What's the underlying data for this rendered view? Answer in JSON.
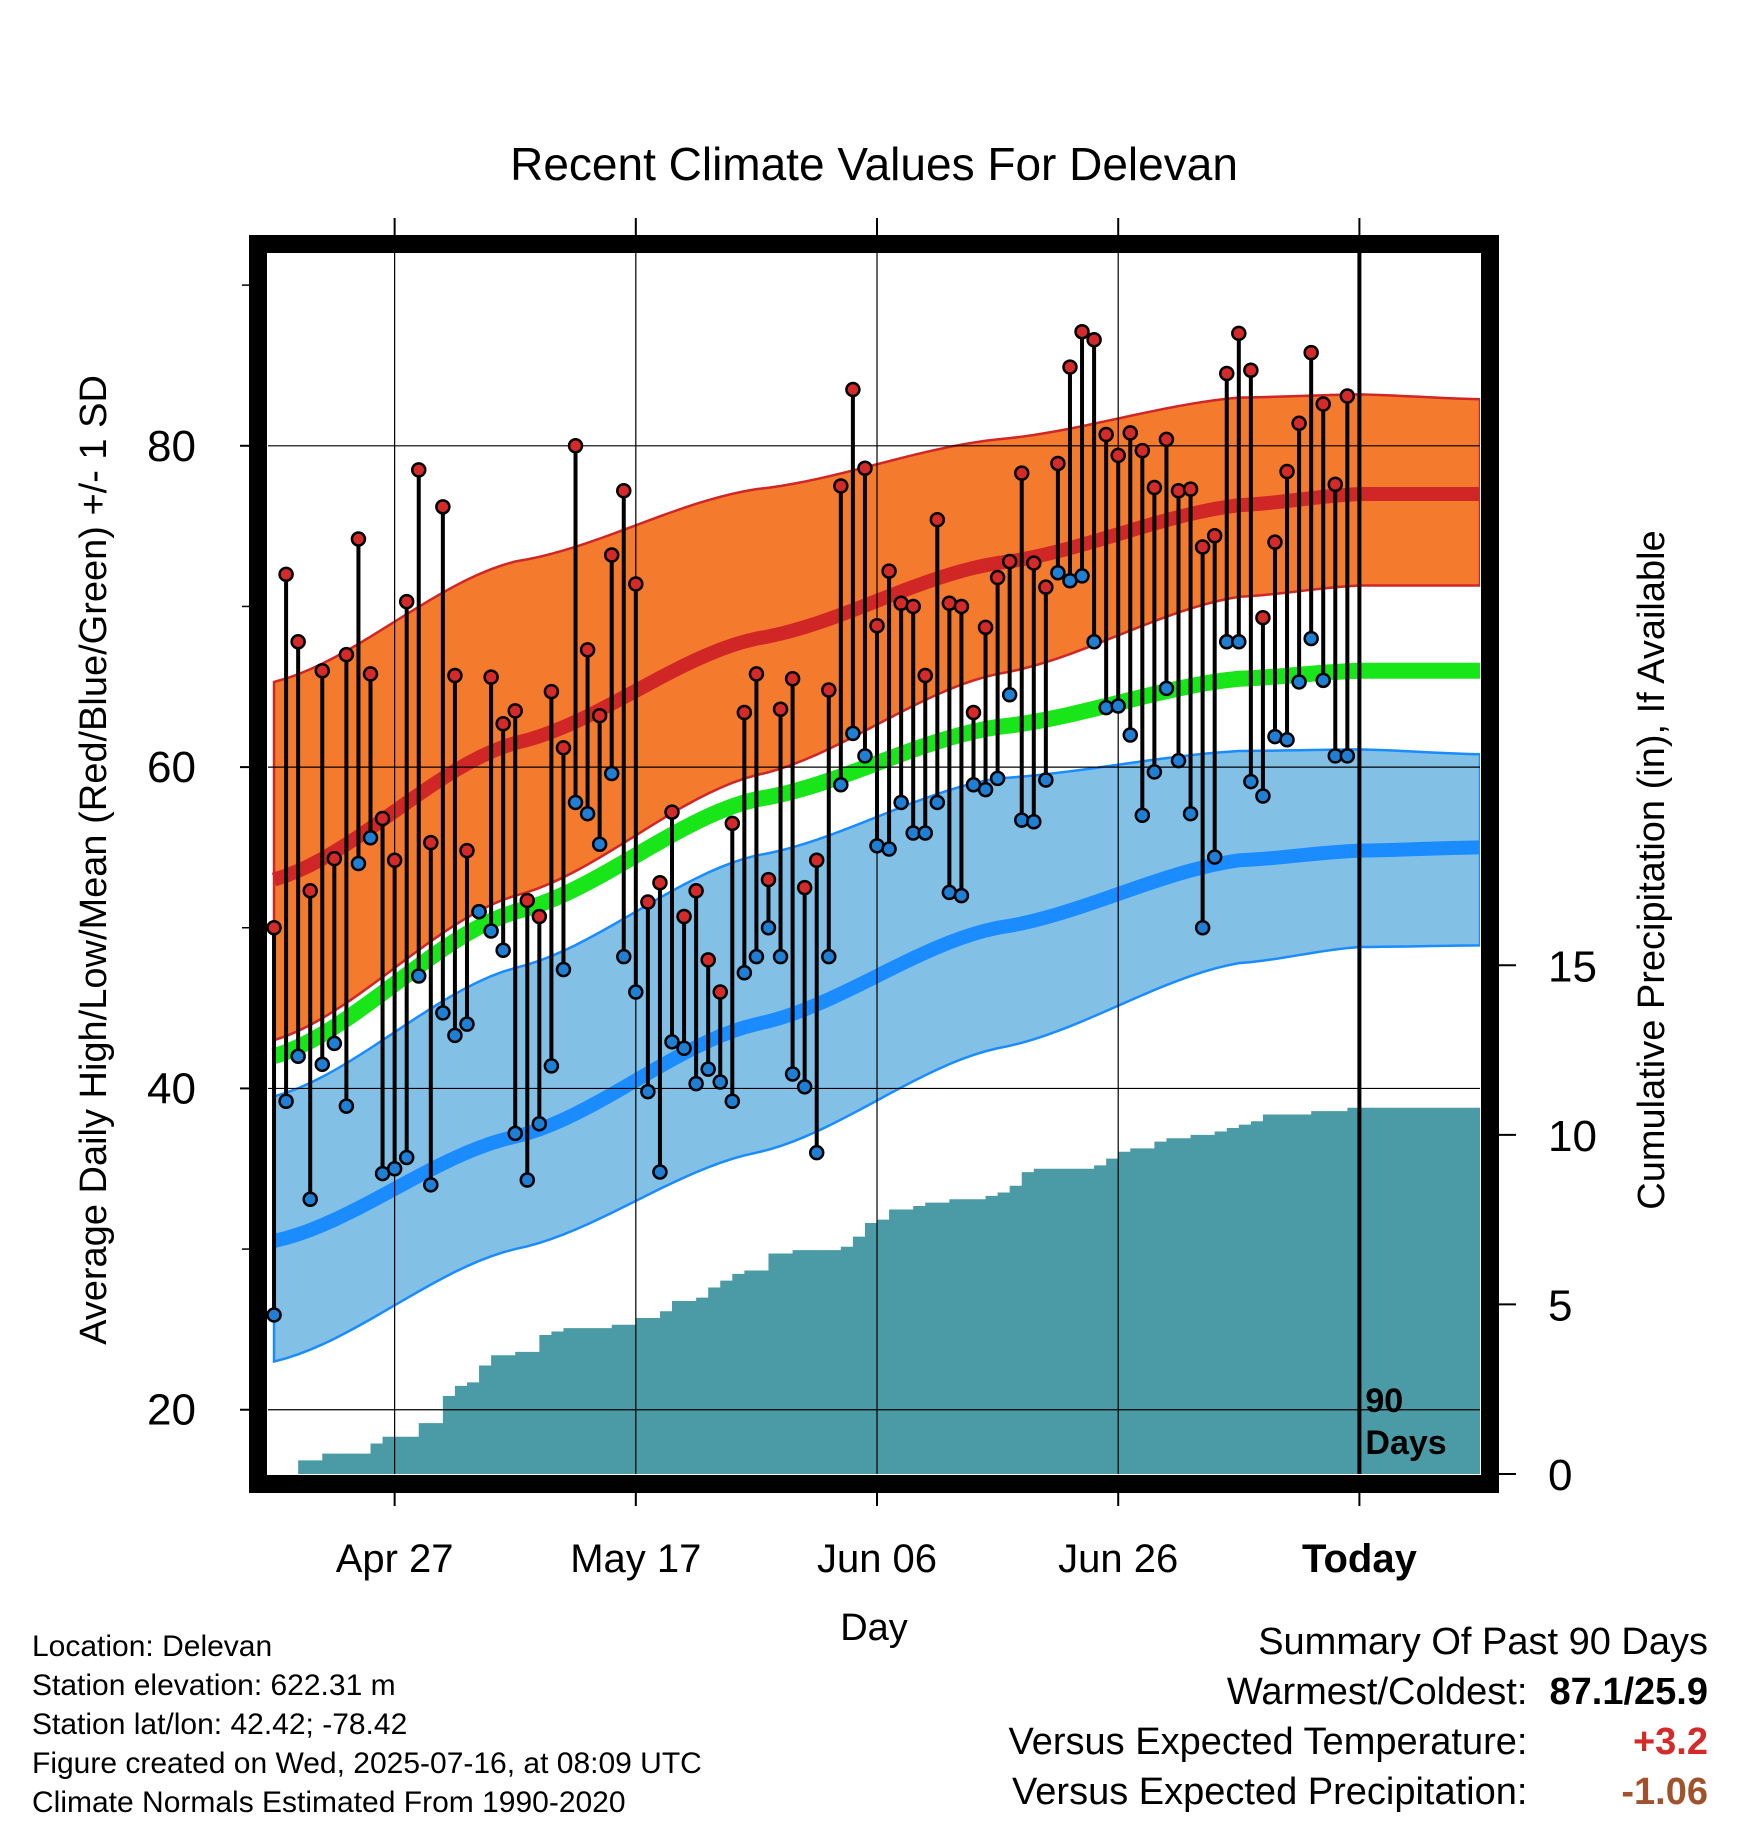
{
  "chart_data": {
    "type": "line",
    "title": "Recent Climate Values For Delevan",
    "xlabel": "Day",
    "ylabel": "Average Daily High/Low/Mean (Red/Blue/Green) +/- 1 SD",
    "y2label": "Cumulative Precipitation (in), If Available",
    "x_ticklabels": [
      "Apr 27",
      "May 17",
      "Jun 06",
      "Jun 26",
      "Today"
    ],
    "x_tick_days": [
      10,
      30,
      50,
      70,
      90
    ],
    "y_ticks": [
      20,
      40,
      60,
      80
    ],
    "ylim": [
      16,
      92
    ],
    "y2_ticks": [
      0,
      5,
      10,
      15
    ],
    "y2lim": [
      0,
      36
    ],
    "xlim": [
      -0.5,
      100
    ],
    "today_marker_label": [
      "90",
      "Days"
    ],
    "normals": {
      "days": [
        0,
        20,
        40,
        60,
        80,
        90,
        100
      ],
      "high_mean": [
        53,
        61.5,
        68,
        72.7,
        76.3,
        77,
        77
      ],
      "high_upper": [
        65.3,
        72.8,
        77.3,
        80.4,
        83,
        83.2,
        82.9
      ],
      "high_lower": [
        43,
        52,
        59.5,
        65.8,
        70.6,
        71.3,
        71.3
      ],
      "mean": [
        42,
        51,
        58,
        62.5,
        65.5,
        66,
        66
      ],
      "low_mean": [
        30.5,
        37,
        44,
        50,
        54.2,
        54.8,
        55
      ],
      "low_upper": [
        39.5,
        47.5,
        54.5,
        59.3,
        61,
        61.1,
        60.8
      ],
      "low_lower": [
        23,
        30,
        36,
        42.5,
        47.8,
        48.8,
        48.9
      ]
    },
    "series": [
      {
        "name": "High",
        "color": "#d42a2a",
        "values": [
          50,
          72,
          67.8,
          52.3,
          66,
          54.3,
          67,
          74.2,
          65.8,
          56.8,
          54.2,
          70.3,
          78.5,
          55.3,
          76.2,
          65.7,
          54.8,
          51,
          65.6,
          62.7,
          63.5,
          51.7,
          50.7,
          64.7,
          61.2,
          80,
          67.3,
          63.2,
          73.2,
          77.2,
          71.4,
          51.6,
          52.8,
          57.2,
          50.7,
          52.3,
          48,
          46,
          56.5,
          63.4,
          65.8,
          53,
          63.6,
          65.5,
          52.5,
          54.2,
          64.8,
          77.5,
          83.5,
          78.6,
          68.8,
          72.2,
          70.2,
          70,
          65.7,
          75.4,
          70.2,
          70,
          63.4,
          68.7,
          71.8,
          72.8,
          78.3,
          72.7,
          71.2,
          78.9,
          84.9,
          87.1,
          86.6,
          80.7,
          79.4,
          80.8,
          79.7,
          77.4,
          80.4,
          77.2,
          77.3,
          73.7,
          74.4,
          84.5,
          87,
          84.7,
          69.3,
          74,
          78.4,
          81.4,
          85.8,
          82.6,
          77.6,
          83.1
        ]
      },
      {
        "name": "Low",
        "color": "#1f7fd4",
        "values": [
          25.9,
          39.2,
          42,
          33.1,
          41.5,
          42.8,
          38.9,
          54,
          55.6,
          34.7,
          35,
          35.7,
          47,
          34,
          44.7,
          43.3,
          44,
          51,
          49.8,
          48.6,
          37.2,
          34.3,
          37.8,
          41.4,
          47.4,
          57.8,
          57.1,
          55.2,
          59.6,
          48.2,
          46,
          39.8,
          34.8,
          42.9,
          42.5,
          40.3,
          41.2,
          40.4,
          39.2,
          47.2,
          48.2,
          50,
          48.2,
          40.9,
          40.1,
          36,
          48.2,
          58.9,
          62.1,
          60.7,
          55.1,
          54.9,
          57.8,
          55.9,
          55.9,
          57.8,
          52.2,
          52,
          58.9,
          58.6,
          59.3,
          64.5,
          56.7,
          56.6,
          59.2,
          72.1,
          71.6,
          71.9,
          67.8,
          63.7,
          63.8,
          62,
          57,
          59.7,
          64.9,
          60.4,
          57.1,
          50,
          54.4,
          67.8,
          67.8,
          59.1,
          58.2,
          61.9,
          61.7,
          65.3,
          68,
          65.4,
          60.7,
          60.7
        ]
      }
    ],
    "precip_cumulative": {
      "days": [
        0,
        1,
        2,
        3,
        4,
        5,
        6,
        7,
        8,
        9,
        10,
        11,
        12,
        13,
        14,
        15,
        16,
        17,
        18,
        19,
        20,
        21,
        22,
        23,
        24,
        25,
        26,
        27,
        28,
        29,
        30,
        31,
        32,
        33,
        34,
        35,
        36,
        37,
        38,
        39,
        40,
        41,
        42,
        43,
        44,
        45,
        46,
        47,
        48,
        49,
        50,
        51,
        52,
        53,
        54,
        55,
        56,
        57,
        58,
        59,
        60,
        61,
        62,
        63,
        64,
        65,
        66,
        67,
        68,
        69,
        70,
        71,
        72,
        73,
        74,
        75,
        76,
        77,
        78,
        79,
        80,
        81,
        82,
        83,
        84,
        85,
        86,
        87,
        88,
        89,
        90,
        100
      ],
      "values": [
        0,
        0,
        0.4,
        0.4,
        0.6,
        0.6,
        0.6,
        0.6,
        0.9,
        1.1,
        1.1,
        1.1,
        1.5,
        1.5,
        2.3,
        2.6,
        2.7,
        3.2,
        3.5,
        3.5,
        3.6,
        3.6,
        4.1,
        4.2,
        4.3,
        4.3,
        4.3,
        4.3,
        4.4,
        4.4,
        4.6,
        4.6,
        4.8,
        5.1,
        5.1,
        5.2,
        5.5,
        5.7,
        5.9,
        6.0,
        6.0,
        6.5,
        6.5,
        6.6,
        6.6,
        6.6,
        6.6,
        6.7,
        7.0,
        7.4,
        7.5,
        7.8,
        7.8,
        7.9,
        8.0,
        8.0,
        8.1,
        8.1,
        8.1,
        8.2,
        8.3,
        8.5,
        8.9,
        9.0,
        9.0,
        9.0,
        9.0,
        9.0,
        9.1,
        9.3,
        9.5,
        9.6,
        9.6,
        9.8,
        9.9,
        9.9,
        10.0,
        10.0,
        10.1,
        10.2,
        10.3,
        10.4,
        10.6,
        10.6,
        10.6,
        10.6,
        10.7,
        10.7,
        10.7,
        10.8,
        10.8,
        10.8
      ]
    }
  },
  "colors": {
    "high_band": "#f47a2e",
    "high_line": "#d02626",
    "low_band": "#82c0e6",
    "low_line": "#1a8cff",
    "mean_line": "#19e619",
    "precip": "#4a9ba5"
  },
  "info": {
    "location": "Location: Delevan",
    "elevation": "Station elevation: 622.31 m",
    "latlon": "Station lat/lon: 42.42; -78.42",
    "created": "Figure created on Wed, 2025-07-16, at 08:09 UTC",
    "normals": "Climate Normals Estimated From 1990-2020"
  },
  "summary": {
    "heading": "Summary Of Past 90 Days",
    "warm_label": "Warmest/Coldest:",
    "warm_value": "87.1/25.9",
    "temp_label": "Versus Expected Temperature:",
    "temp_value": "+3.2",
    "temp_color": "#d42a2a",
    "precip_label": "Versus Expected Precipitation:",
    "precip_value": "-1.06",
    "precip_color": "#a0522d"
  }
}
